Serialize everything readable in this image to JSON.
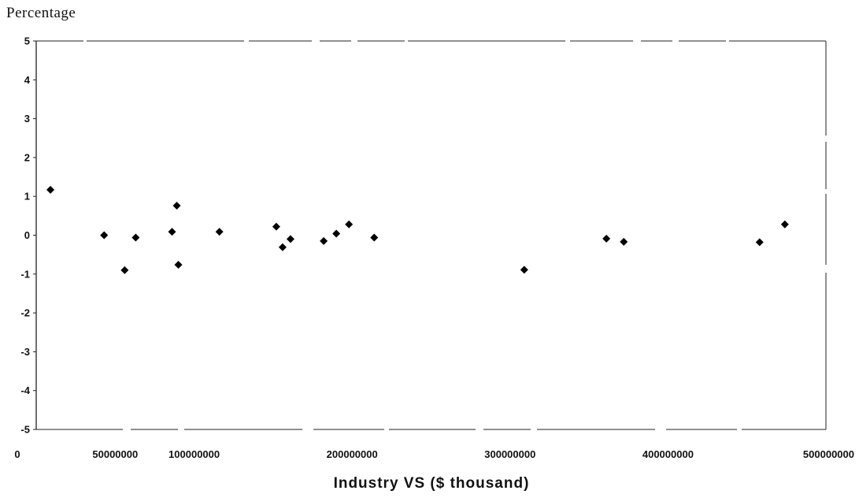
{
  "chart_data": {
    "type": "scatter",
    "title": "",
    "ylabel": "Percentage",
    "xlabel": "Industry VS ($ thousand)",
    "xlim": [
      0,
      500000000
    ],
    "ylim": [
      -5,
      5
    ],
    "x_ticks": [
      {
        "value": 0,
        "label": "0"
      },
      {
        "value": 50000000,
        "label": "50000000"
      },
      {
        "value": 100000000,
        "label": "100000000"
      },
      {
        "value": 200000000,
        "label": "200000000"
      },
      {
        "value": 300000000,
        "label": "300000000"
      },
      {
        "value": 400000000,
        "label": "400000000"
      },
      {
        "value": 500000000,
        "label": "500000000"
      }
    ],
    "y_ticks": [
      {
        "value": 5,
        "label": "5"
      },
      {
        "value": 4,
        "label": "4"
      },
      {
        "value": 3,
        "label": "3"
      },
      {
        "value": 2,
        "label": "2"
      },
      {
        "value": 1,
        "label": "1"
      },
      {
        "value": 0,
        "label": "0"
      },
      {
        "value": -1,
        "label": "-1"
      },
      {
        "value": -2,
        "label": "-2"
      },
      {
        "value": -3,
        "label": "-3"
      },
      {
        "value": -4,
        "label": "-4"
      },
      {
        "value": -5,
        "label": "-5"
      }
    ],
    "grid": false,
    "legend": "none",
    "marker_color": "#000000",
    "series": [
      {
        "points": [
          {
            "x": 9000000,
            "y": 1.17
          },
          {
            "x": 43000000,
            "y": 0.0
          },
          {
            "x": 56000000,
            "y": -0.9
          },
          {
            "x": 63000000,
            "y": -0.06
          },
          {
            "x": 86000000,
            "y": 0.09
          },
          {
            "x": 89000000,
            "y": 0.76
          },
          {
            "x": 90000000,
            "y": -0.76
          },
          {
            "x": 116000000,
            "y": 0.09
          },
          {
            "x": 152000000,
            "y": 0.22
          },
          {
            "x": 156000000,
            "y": -0.31
          },
          {
            "x": 161000000,
            "y": -0.1
          },
          {
            "x": 182000000,
            "y": -0.15
          },
          {
            "x": 190000000,
            "y": 0.04
          },
          {
            "x": 198000000,
            "y": 0.28
          },
          {
            "x": 214000000,
            "y": -0.06
          },
          {
            "x": 309000000,
            "y": -0.89
          },
          {
            "x": 361000000,
            "y": -0.09
          },
          {
            "x": 372000000,
            "y": -0.17
          },
          {
            "x": 458000000,
            "y": -0.18
          },
          {
            "x": 474000000,
            "y": 0.28
          }
        ]
      }
    ]
  }
}
